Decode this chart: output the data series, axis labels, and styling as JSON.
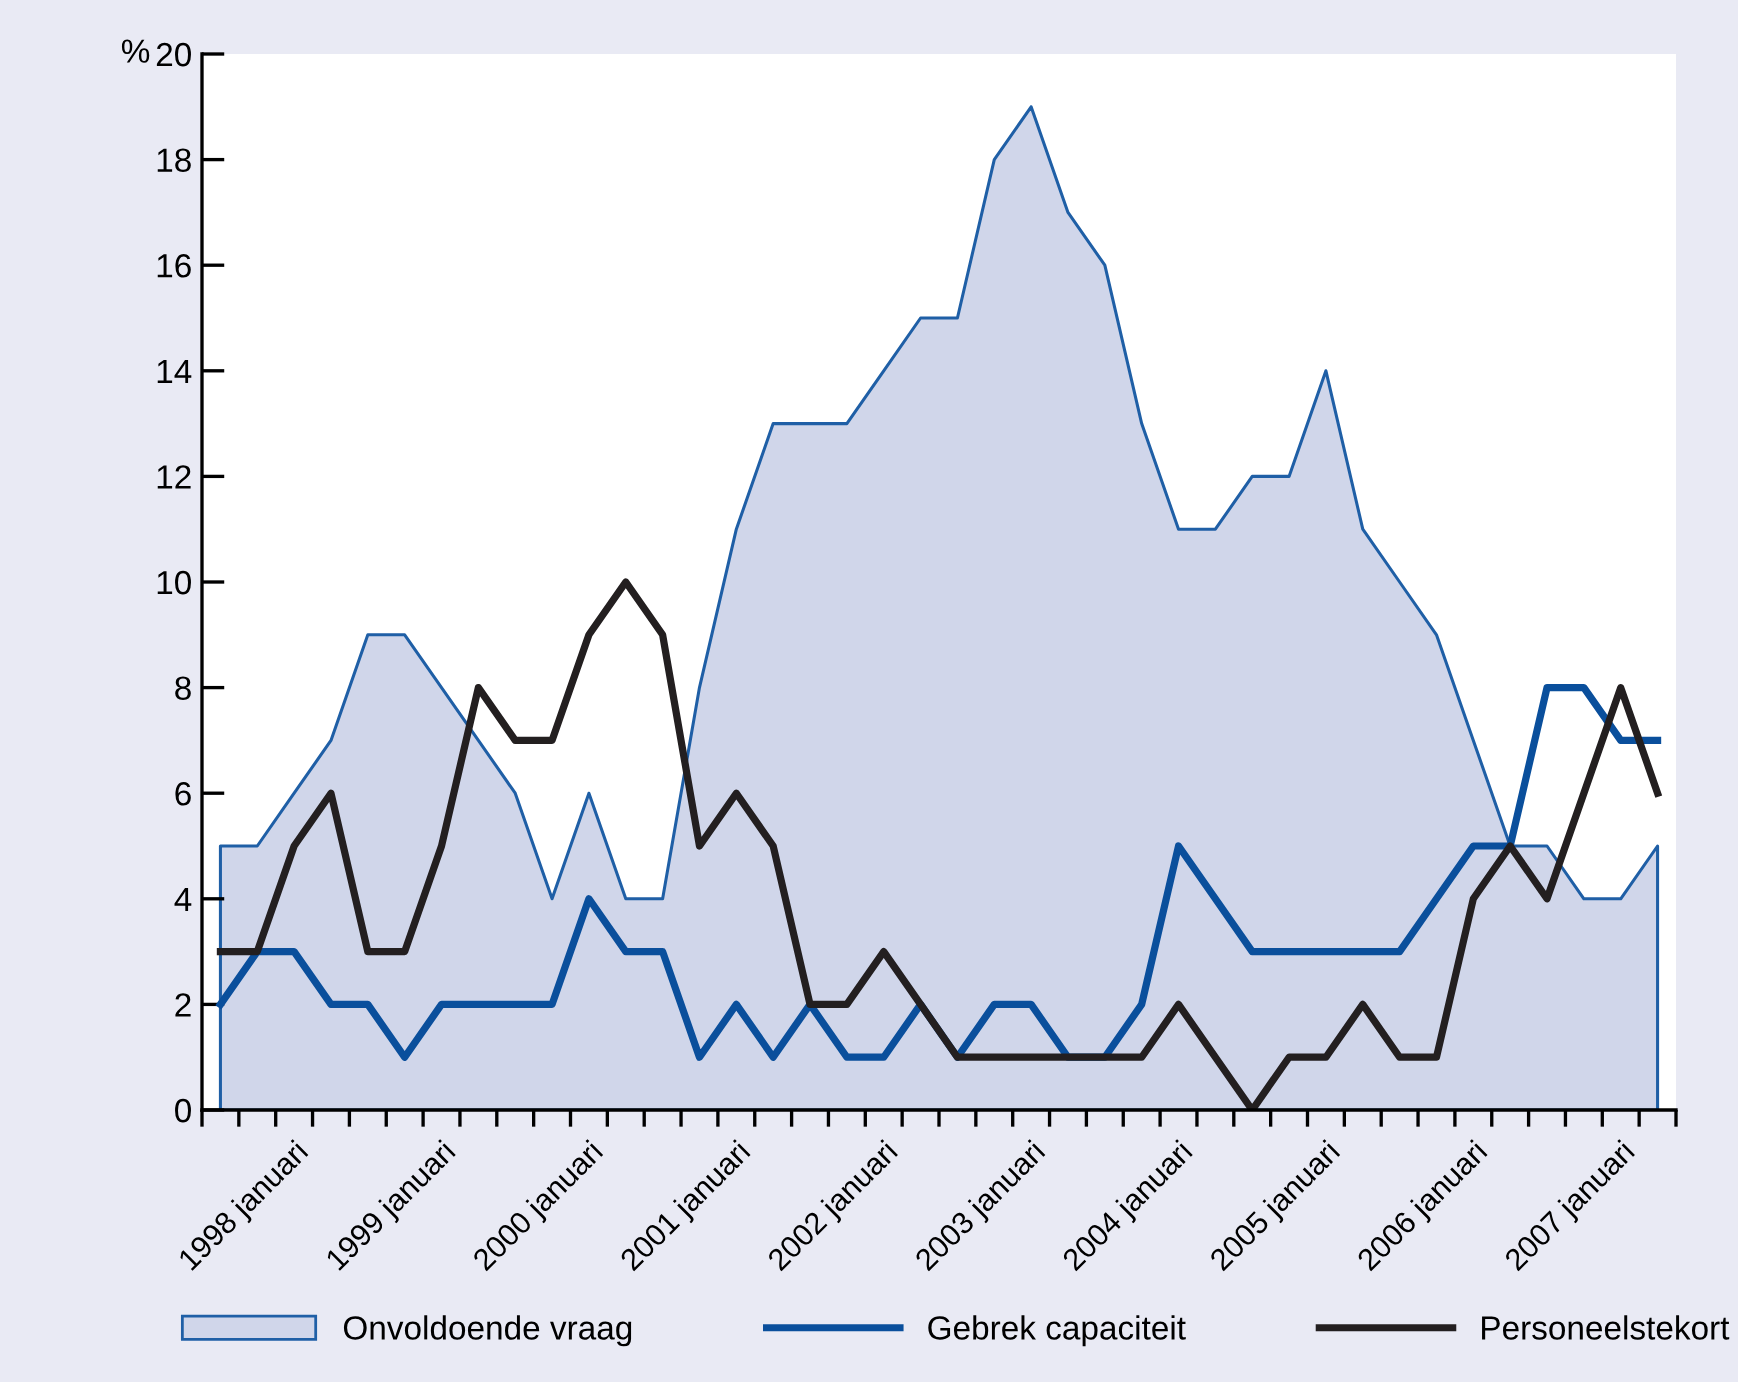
{
  "chart_data": {
    "type": "line",
    "ylabel": "%",
    "categories": [
      null,
      null,
      "1998 januari",
      null,
      null,
      null,
      "1999 januari",
      null,
      null,
      null,
      "2000 januari",
      null,
      null,
      null,
      "2001 januari",
      null,
      null,
      null,
      "2002 januari",
      null,
      null,
      null,
      "2003 januari",
      null,
      null,
      null,
      "2004 januari",
      null,
      null,
      null,
      "2005 januari",
      null,
      null,
      null,
      "2006 januari",
      null,
      null,
      null,
      "2007 januari",
      null
    ],
    "series": [
      {
        "name": "Onvoldoende vraag",
        "type": "area",
        "color": "#d0d6ea",
        "values": [
          5,
          5,
          6,
          7,
          9,
          9,
          8,
          7,
          6,
          4,
          6,
          4,
          4,
          8,
          11,
          13,
          13,
          13,
          14,
          15,
          15,
          18,
          19,
          17,
          16,
          13,
          11,
          11,
          12,
          12,
          14,
          11,
          10,
          9,
          7,
          5,
          5,
          4,
          4,
          5
        ]
      },
      {
        "name": "Gebrek capaciteit",
        "color": "#0a4f9c",
        "values": [
          2,
          3,
          3,
          2,
          2,
          1,
          2,
          2,
          2,
          2,
          4,
          3,
          3,
          1,
          2,
          1,
          2,
          1,
          1,
          2,
          1,
          2,
          2,
          1,
          1,
          2,
          5,
          4,
          3,
          3,
          3,
          3,
          3,
          4,
          5,
          5,
          8,
          8,
          7,
          7
        ]
      },
      {
        "name": "Personeelstekort",
        "color": "#231f20",
        "values": [
          3,
          3,
          5,
          6,
          3,
          3,
          5,
          8,
          7,
          7,
          9,
          10,
          9,
          5,
          6,
          5,
          2,
          2,
          3,
          2,
          1,
          1,
          1,
          1,
          1,
          1,
          2,
          1,
          0,
          1,
          1,
          2,
          1,
          1,
          4,
          5,
          4,
          6,
          8,
          6
        ]
      }
    ],
    "ylim": [
      0,
      20
    ],
    "yticks": [
      0,
      2,
      4,
      6,
      8,
      10,
      12,
      14,
      16,
      18,
      20
    ],
    "grid": false,
    "legend": "bottom",
    "marker": "none",
    "line_style": "solid"
  }
}
